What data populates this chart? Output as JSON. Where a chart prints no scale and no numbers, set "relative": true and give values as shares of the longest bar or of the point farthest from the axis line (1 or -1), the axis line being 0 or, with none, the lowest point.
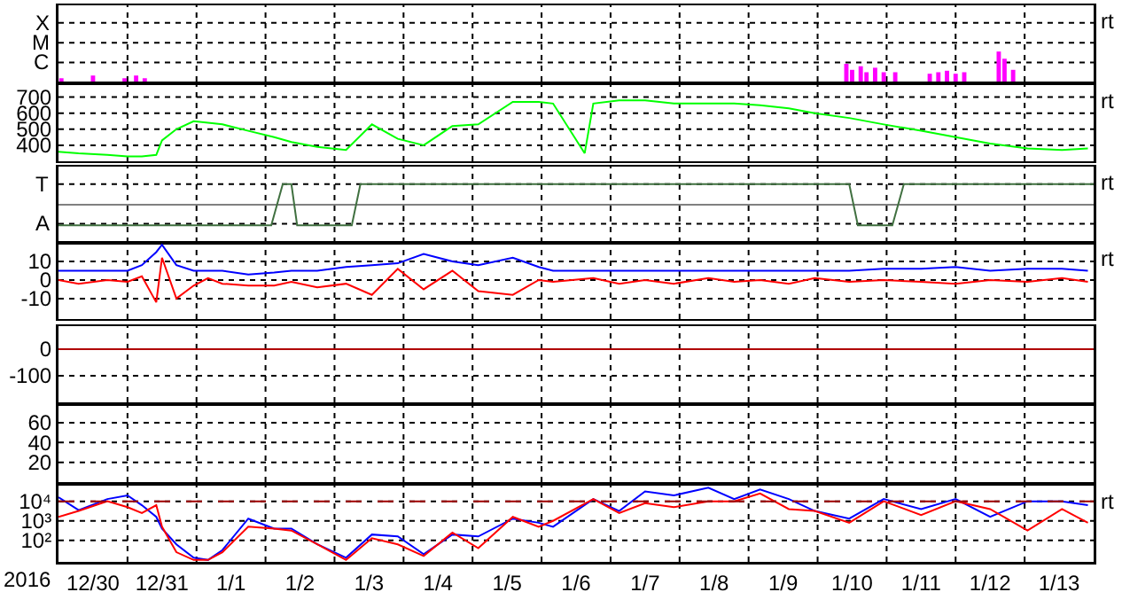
{
  "chart_data": [
    {
      "type": "bar",
      "annotations": [
        "rt",
        "X",
        "M",
        "C"
      ],
      "relative": true,
      "grid": true,
      "legend": false,
      "tick_labels": "y",
      "xlim": [
        "2015-12-30T00:00",
        "2016-01-14T00:00"
      ],
      "xticks": [
        {
          "value": "2015-12-31T00:00",
          "label": null
        },
        {
          "value": "2016-01-01T00:00",
          "label": null
        },
        {
          "value": "2016-01-02T00:00",
          "label": null
        },
        {
          "value": "2016-01-03T00:00",
          "label": null
        },
        {
          "value": "2016-01-04T00:00",
          "label": null
        },
        {
          "value": "2016-01-05T00:00",
          "label": null
        },
        {
          "value": "2016-01-06T00:00",
          "label": null
        },
        {
          "value": "2016-01-07T00:00",
          "label": null
        },
        {
          "value": "2016-01-08T00:00",
          "label": null
        },
        {
          "value": "2016-01-09T00:00",
          "label": null
        },
        {
          "value": "2016-01-10T00:00",
          "label": null
        },
        {
          "value": "2016-01-11T00:00",
          "label": null
        },
        {
          "value": "2016-01-12T00:00",
          "label": null
        },
        {
          "value": "2016-01-13T00:00",
          "label": null
        }
      ],
      "x": [
        "2015-12-30T01:00",
        "2015-12-30T12:00",
        "2015-12-30T23:00",
        "2015-12-31T03:00",
        "2015-12-31T06:00",
        "2016-01-10T10:00",
        "2016-01-10T12:00",
        "2016-01-10T15:00",
        "2016-01-10T17:00",
        "2016-01-10T20:00",
        "2016-01-10T23:00",
        "2016-01-11T03:00",
        "2016-01-11T15:00",
        "2016-01-11T18:00",
        "2016-01-11T21:00",
        "2016-01-12T00:00",
        "2016-01-12T03:00",
        "2016-01-12T15:00",
        "2016-01-12T17:00",
        "2016-01-12T20:00"
      ],
      "series": [
        {
          "color": "#ff00ff",
          "values": [
            0.11,
            0.2,
            0.11,
            0.2,
            0.11,
            0.59,
            0.39,
            0.51,
            0.31,
            0.46,
            0.31,
            0.31,
            0.26,
            0.31,
            0.36,
            0.26,
            0.31,
            1,
            0.76,
            0.39
          ]
        }
      ]
    },
    {
      "type": "line",
      "annotations": [
        "rt"
      ],
      "grid": true,
      "legend": false,
      "tick_labels": "y",
      "xlim": [
        "2015-12-30T00:00",
        "2016-01-14T00:00"
      ],
      "ylim": [
        300,
        775
      ],
      "yticks": [
        400,
        500,
        600,
        700
      ],
      "xticks": [
        {
          "value": "2015-12-31T00:00",
          "label": null
        },
        {
          "value": "2016-01-01T00:00",
          "label": null
        },
        {
          "value": "2016-01-02T00:00",
          "label": null
        },
        {
          "value": "2016-01-03T00:00",
          "label": null
        },
        {
          "value": "2016-01-04T00:00",
          "label": null
        },
        {
          "value": "2016-01-05T00:00",
          "label": null
        },
        {
          "value": "2016-01-06T00:00",
          "label": null
        },
        {
          "value": "2016-01-07T00:00",
          "label": null
        },
        {
          "value": "2016-01-08T00:00",
          "label": null
        },
        {
          "value": "2016-01-09T00:00",
          "label": null
        },
        {
          "value": "2016-01-10T00:00",
          "label": null
        },
        {
          "value": "2016-01-11T00:00",
          "label": null
        },
        {
          "value": "2016-01-12T00:00",
          "label": null
        },
        {
          "value": "2016-01-13T00:00",
          "label": null
        }
      ],
      "x": [
        "2015-12-30T00:00",
        "2015-12-30T07:00",
        "2015-12-30T17:00",
        "2015-12-31T00:00",
        "2015-12-31T05:00",
        "2015-12-31T10:00",
        "2015-12-31T12:00",
        "2015-12-31T17:00",
        "2015-12-31T23:00",
        "2016-01-01T04:00",
        "2016-01-01T09:00",
        "2016-01-01T18:00",
        "2016-01-02T03:00",
        "2016-01-02T09:00",
        "2016-01-02T18:00",
        "2016-01-03T04:00",
        "2016-01-03T13:00",
        "2016-01-03T22:00",
        "2016-01-04T07:00",
        "2016-01-04T17:00",
        "2016-01-05T02:00",
        "2016-01-05T14:00",
        "2016-01-05T23:00",
        "2016-01-06T04:00",
        "2016-01-06T15:00",
        "2016-01-06T18:00",
        "2016-01-07T03:00",
        "2016-01-07T12:00",
        "2016-01-07T22:00",
        "2016-01-08T10:00",
        "2016-01-08T19:00",
        "2016-01-09T04:00",
        "2016-01-09T14:00",
        "2016-01-09T23:00",
        "2016-01-10T11:00",
        "2016-01-10T23:00",
        "2016-01-11T12:00",
        "2016-01-12T00:00",
        "2016-01-12T12:00",
        "2016-01-13T01:00",
        "2016-01-13T13:00",
        "2016-01-13T22:00"
      ],
      "series": [
        {
          "color": "#00ff00",
          "values": [
            360,
            350,
            340,
            330,
            330,
            340,
            430,
            500,
            550,
            540,
            530,
            490,
            450,
            420,
            390,
            370,
            530,
            440,
            400,
            520,
            530,
            670,
            670,
            660,
            350,
            660,
            680,
            680,
            660,
            660,
            660,
            650,
            630,
            600,
            570,
            530,
            490,
            450,
            410,
            380,
            370,
            380
          ]
        }
      ]
    },
    {
      "type": "line",
      "annotations": [
        "rt",
        "T",
        "A"
      ],
      "relative": true,
      "grid": true,
      "legend": false,
      "tick_labels": "y",
      "xlim": [
        "2015-12-30T00:00",
        "2016-01-14T00:00"
      ],
      "xticks": [
        {
          "value": "2015-12-31T00:00",
          "label": null
        },
        {
          "value": "2016-01-01T00:00",
          "label": null
        },
        {
          "value": "2016-01-02T00:00",
          "label": null
        },
        {
          "value": "2016-01-03T00:00",
          "label": null
        },
        {
          "value": "2016-01-04T00:00",
          "label": null
        },
        {
          "value": "2016-01-05T00:00",
          "label": null
        },
        {
          "value": "2016-01-06T00:00",
          "label": null
        },
        {
          "value": "2016-01-07T00:00",
          "label": null
        },
        {
          "value": "2016-01-08T00:00",
          "label": null
        },
        {
          "value": "2016-01-09T00:00",
          "label": null
        },
        {
          "value": "2016-01-10T00:00",
          "label": null
        },
        {
          "value": "2016-01-11T00:00",
          "label": null
        },
        {
          "value": "2016-01-12T00:00",
          "label": null
        },
        {
          "value": "2016-01-13T00:00",
          "label": null
        }
      ],
      "series": [
        {
          "color": "#407040",
          "x": [
            "2015-12-30T00:00",
            "2016-01-02T02:00",
            "2016-01-02T06:00",
            "2016-01-02T09:00",
            "2016-01-02T11:00",
            "2016-01-03T06:00",
            "2016-01-03T09:00",
            "2016-01-10T11:00",
            "2016-01-10T14:00",
            "2016-01-11T02:00",
            "2016-01-11T06:00",
            "2016-01-14T00:00"
          ],
          "values": [
            -1,
            -1,
            1,
            1,
            -1,
            -1,
            1,
            1,
            -1,
            -1,
            1,
            1
          ]
        }
      ]
    },
    {
      "type": "line",
      "annotations": [
        "rt"
      ],
      "grid": true,
      "legend": false,
      "tick_labels": "y",
      "xlim": [
        "2015-12-30T00:00",
        "2016-01-14T00:00"
      ],
      "ylim": [
        -21,
        20
      ],
      "yticks": [
        -10,
        0,
        10
      ],
      "xticks": [
        {
          "value": "2015-12-31T00:00",
          "label": null
        },
        {
          "value": "2016-01-01T00:00",
          "label": null
        },
        {
          "value": "2016-01-02T00:00",
          "label": null
        },
        {
          "value": "2016-01-03T00:00",
          "label": null
        },
        {
          "value": "2016-01-04T00:00",
          "label": null
        },
        {
          "value": "2016-01-05T00:00",
          "label": null
        },
        {
          "value": "2016-01-06T00:00",
          "label": null
        },
        {
          "value": "2016-01-07T00:00",
          "label": null
        },
        {
          "value": "2016-01-08T00:00",
          "label": null
        },
        {
          "value": "2016-01-09T00:00",
          "label": null
        },
        {
          "value": "2016-01-10T00:00",
          "label": null
        },
        {
          "value": "2016-01-11T00:00",
          "label": null
        },
        {
          "value": "2016-01-12T00:00",
          "label": null
        },
        {
          "value": "2016-01-13T00:00",
          "label": null
        }
      ],
      "x": [
        "2015-12-30T00:00",
        "2015-12-30T07:00",
        "2015-12-30T17:00",
        "2015-12-31T00:00",
        "2015-12-31T05:00",
        "2015-12-31T10:00",
        "2015-12-31T12:00",
        "2015-12-31T17:00",
        "2015-12-31T23:00",
        "2016-01-01T04:00",
        "2016-01-01T09:00",
        "2016-01-01T18:00",
        "2016-01-02T03:00",
        "2016-01-02T09:00",
        "2016-01-02T18:00",
        "2016-01-03T04:00",
        "2016-01-03T13:00",
        "2016-01-03T22:00",
        "2016-01-04T07:00",
        "2016-01-04T17:00",
        "2016-01-05T02:00",
        "2016-01-05T14:00",
        "2016-01-05T23:00",
        "2016-01-06T04:00",
        "2016-01-06T18:00",
        "2016-01-07T03:00",
        "2016-01-07T12:00",
        "2016-01-07T22:00",
        "2016-01-08T10:00",
        "2016-01-08T19:00",
        "2016-01-09T04:00",
        "2016-01-09T14:00",
        "2016-01-09T23:00",
        "2016-01-10T11:00",
        "2016-01-10T23:00",
        "2016-01-11T12:00",
        "2016-01-12T00:00",
        "2016-01-12T12:00",
        "2016-01-13T01:00",
        "2016-01-13T13:00",
        "2016-01-13T22:00"
      ],
      "series": [
        {
          "color": "#0000ff",
          "values": [
            5,
            5,
            5,
            5,
            8,
            15,
            19,
            8,
            5,
            5,
            5,
            3,
            4,
            5,
            5,
            7,
            8,
            9,
            14,
            10,
            8,
            12,
            7,
            5,
            5,
            5,
            5,
            5,
            5,
            5,
            5,
            5,
            5,
            5,
            6,
            6,
            7,
            5,
            6,
            6,
            5
          ]
        },
        {
          "color": "#ff0000",
          "values": [
            0,
            -2,
            0,
            -1,
            2,
            -12,
            12,
            -10,
            -3,
            1,
            -2,
            -3,
            -3,
            -1,
            -4,
            -2,
            -8,
            6,
            -5,
            5,
            -6,
            -8,
            0,
            -1,
            1,
            -2,
            0,
            -2,
            1,
            -1,
            0,
            -2,
            1,
            -1,
            0,
            -1,
            -2,
            0,
            -1,
            1,
            -1
          ]
        }
      ]
    },
    {
      "type": "line",
      "grid": true,
      "legend": false,
      "tick_labels": "y",
      "xlim": [
        "2015-12-30T00:00",
        "2016-01-14T00:00"
      ],
      "ylim": [
        -200,
        87
      ],
      "yticks": [
        -100,
        0
      ],
      "ref_lines": [
        {
          "axis": "y",
          "value": 0,
          "color": "#b00000"
        }
      ],
      "xticks": [
        {
          "value": "2015-12-31T00:00",
          "label": null
        },
        {
          "value": "2016-01-01T00:00",
          "label": null
        },
        {
          "value": "2016-01-02T00:00",
          "label": null
        },
        {
          "value": "2016-01-03T00:00",
          "label": null
        },
        {
          "value": "2016-01-04T00:00",
          "label": null
        },
        {
          "value": "2016-01-05T00:00",
          "label": null
        },
        {
          "value": "2016-01-06T00:00",
          "label": null
        },
        {
          "value": "2016-01-07T00:00",
          "label": null
        },
        {
          "value": "2016-01-08T00:00",
          "label": null
        },
        {
          "value": "2016-01-09T00:00",
          "label": null
        },
        {
          "value": "2016-01-10T00:00",
          "label": null
        },
        {
          "value": "2016-01-11T00:00",
          "label": null
        },
        {
          "value": "2016-01-12T00:00",
          "label": null
        },
        {
          "value": "2016-01-13T00:00",
          "label": null
        }
      ]
    },
    {
      "type": "line",
      "grid": true,
      "legend": false,
      "tick_labels": "y",
      "xlim": [
        "2015-12-30T00:00",
        "2016-01-14T00:00"
      ],
      "ylim": [
        0,
        77
      ],
      "yticks": [
        20,
        40,
        60
      ],
      "xticks": [
        {
          "value": "2015-12-31T00:00",
          "label": null
        },
        {
          "value": "2016-01-01T00:00",
          "label": null
        },
        {
          "value": "2016-01-02T00:00",
          "label": null
        },
        {
          "value": "2016-01-03T00:00",
          "label": null
        },
        {
          "value": "2016-01-04T00:00",
          "label": null
        },
        {
          "value": "2016-01-05T00:00",
          "label": null
        },
        {
          "value": "2016-01-06T00:00",
          "label": null
        },
        {
          "value": "2016-01-07T00:00",
          "label": null
        },
        {
          "value": "2016-01-08T00:00",
          "label": null
        },
        {
          "value": "2016-01-09T00:00",
          "label": null
        },
        {
          "value": "2016-01-10T00:00",
          "label": null
        },
        {
          "value": "2016-01-11T00:00",
          "label": null
        },
        {
          "value": "2016-01-12T00:00",
          "label": null
        },
        {
          "value": "2016-01-13T00:00",
          "label": null
        }
      ]
    },
    {
      "type": "line",
      "annotations": [
        "rt"
      ],
      "xlabel": "2016",
      "log": true,
      "grid": true,
      "legend": false,
      "xlim": [
        "2015-12-30T00:00",
        "2016-01-14T00:00"
      ],
      "ylim": [
        8,
        63000
      ],
      "yticks": [
        {
          "value": 100,
          "label": "10²"
        },
        {
          "value": 1000,
          "label": "10³"
        },
        {
          "value": 10000,
          "label": "10⁴"
        }
      ],
      "ref_lines": [
        {
          "axis": "y",
          "value": 10000,
          "color": "#a00000",
          "line_style": "dashed"
        }
      ],
      "xticks": [
        {
          "value": "2015-12-30T12:00",
          "label": "12/30"
        },
        {
          "value": "2015-12-31T00:00",
          "label": null
        },
        {
          "value": "2015-12-31T12:00",
          "label": "12/31"
        },
        {
          "value": "2016-01-01T00:00",
          "label": null
        },
        {
          "value": "2016-01-01T12:00",
          "label": "1/1"
        },
        {
          "value": "2016-01-02T00:00",
          "label": null
        },
        {
          "value": "2016-01-02T12:00",
          "label": "1/2"
        },
        {
          "value": "2016-01-03T00:00",
          "label": null
        },
        {
          "value": "2016-01-03T12:00",
          "label": "1/3"
        },
        {
          "value": "2016-01-04T00:00",
          "label": null
        },
        {
          "value": "2016-01-04T12:00",
          "label": "1/4"
        },
        {
          "value": "2016-01-05T00:00",
          "label": null
        },
        {
          "value": "2016-01-05T12:00",
          "label": "1/5"
        },
        {
          "value": "2016-01-06T00:00",
          "label": null
        },
        {
          "value": "2016-01-06T12:00",
          "label": "1/6"
        },
        {
          "value": "2016-01-07T00:00",
          "label": null
        },
        {
          "value": "2016-01-07T12:00",
          "label": "1/7"
        },
        {
          "value": "2016-01-08T00:00",
          "label": null
        },
        {
          "value": "2016-01-08T12:00",
          "label": "1/8"
        },
        {
          "value": "2016-01-09T00:00",
          "label": null
        },
        {
          "value": "2016-01-09T12:00",
          "label": "1/9"
        },
        {
          "value": "2016-01-10T00:00",
          "label": null
        },
        {
          "value": "2016-01-10T12:00",
          "label": "1/10"
        },
        {
          "value": "2016-01-11T00:00",
          "label": null
        },
        {
          "value": "2016-01-11T12:00",
          "label": "1/11"
        },
        {
          "value": "2016-01-12T00:00",
          "label": null
        },
        {
          "value": "2016-01-12T12:00",
          "label": "1/12"
        },
        {
          "value": "2016-01-13T00:00",
          "label": null
        },
        {
          "value": "2016-01-13T12:00",
          "label": "1/13"
        }
      ],
      "x": [
        "2015-12-30T00:00",
        "2015-12-30T07:00",
        "2015-12-30T17:00",
        "2015-12-31T00:00",
        "2015-12-31T05:00",
        "2015-12-31T10:00",
        "2015-12-31T12:00",
        "2015-12-31T17:00",
        "2015-12-31T23:00",
        "2016-01-01T04:00",
        "2016-01-01T09:00",
        "2016-01-01T18:00",
        "2016-01-02T03:00",
        "2016-01-02T09:00",
        "2016-01-02T18:00",
        "2016-01-03T04:00",
        "2016-01-03T13:00",
        "2016-01-03T22:00",
        "2016-01-04T07:00",
        "2016-01-04T17:00",
        "2016-01-05T02:00",
        "2016-01-05T14:00",
        "2016-01-05T23:00",
        "2016-01-06T04:00",
        "2016-01-06T18:00",
        "2016-01-07T03:00",
        "2016-01-07T12:00",
        "2016-01-07T22:00",
        "2016-01-08T10:00",
        "2016-01-08T19:00",
        "2016-01-09T04:00",
        "2016-01-09T14:00",
        "2016-01-09T23:00",
        "2016-01-10T11:00",
        "2016-01-10T23:00",
        "2016-01-11T12:00",
        "2016-01-12T00:00",
        "2016-01-12T12:00",
        "2016-01-13T01:00",
        "2016-01-13T13:00",
        "2016-01-13T22:00"
      ],
      "series": [
        {
          "color": "#0000ff",
          "values": [
            16000,
            3500,
            13000,
            20000,
            6300,
            1600,
            400,
            63,
            13,
            10,
            32,
            1300,
            400,
            400,
            63,
            13,
            200,
            160,
            20,
            200,
            160,
            1300,
            800,
            500,
            13000,
            3200,
            32000,
            20000,
            50000,
            13000,
            40000,
            13000,
            3200,
            1300,
            13000,
            4000,
            13000,
            1600,
            10000,
            10000,
            6300
          ]
        },
        {
          "color": "#ff0000",
          "values": [
            1600,
            3200,
            10000,
            5000,
            2500,
            6300,
            500,
            25,
            10,
            10,
            25,
            500,
            400,
            320,
            63,
            10,
            130,
            63,
            16,
            250,
            40,
            1600,
            500,
            1000,
            13000,
            2500,
            8000,
            5000,
            10000,
            10000,
            25000,
            4000,
            3200,
            800,
            10000,
            2000,
            10000,
            4000,
            320,
            4000,
            800
          ]
        }
      ]
    }
  ]
}
